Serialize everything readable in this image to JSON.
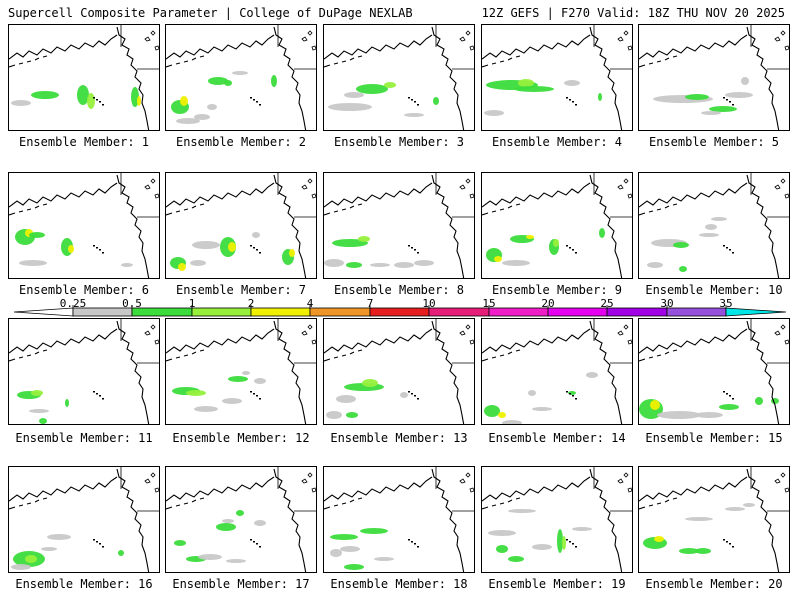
{
  "header": {
    "title_left": "Supercell Composite Parameter | College of DuPage NEXLAB",
    "title_right": "12Z GEFS | F270 Valid: 18Z THU NOV 20 2025"
  },
  "members": [
    {
      "label": "Ensemble Member: 1"
    },
    {
      "label": "Ensemble Member: 2"
    },
    {
      "label": "Ensemble Member: 3"
    },
    {
      "label": "Ensemble Member: 4"
    },
    {
      "label": "Ensemble Member: 5"
    },
    {
      "label": "Ensemble Member: 6"
    },
    {
      "label": "Ensemble Member: 7"
    },
    {
      "label": "Ensemble Member: 8"
    },
    {
      "label": "Ensemble Member: 9"
    },
    {
      "label": "Ensemble Member: 10"
    },
    {
      "label": "Ensemble Member: 11"
    },
    {
      "label": "Ensemble Member: 12"
    },
    {
      "label": "Ensemble Member: 13"
    },
    {
      "label": "Ensemble Member: 14"
    },
    {
      "label": "Ensemble Member: 15"
    },
    {
      "label": "Ensemble Member: 16"
    },
    {
      "label": "Ensemble Member: 17"
    },
    {
      "label": "Ensemble Member: 18"
    },
    {
      "label": "Ensemble Member: 19"
    },
    {
      "label": "Ensemble Member: 20"
    }
  ],
  "legend": {
    "ticks": [
      "0.25",
      "0.5",
      "1",
      "2",
      "4",
      "7",
      "10",
      "15",
      "20",
      "25",
      "30",
      "35"
    ],
    "colors": [
      "#c8c8c8",
      "#3cdc3c",
      "#96f03c",
      "#f0f000",
      "#f09628",
      "#e61e1e",
      "#e61e78",
      "#f01ec8",
      "#e600f0",
      "#a000e6",
      "#9650dc",
      "#00e6e6"
    ]
  }
}
